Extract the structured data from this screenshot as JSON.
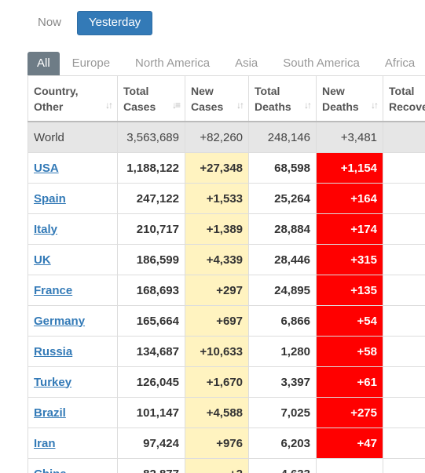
{
  "day_tabs": [
    {
      "label": "Now",
      "active": false
    },
    {
      "label": "Yesterday",
      "active": true
    }
  ],
  "region_tabs": [
    {
      "label": "All",
      "active": true
    },
    {
      "label": "Europe",
      "active": false
    },
    {
      "label": "North America",
      "active": false
    },
    {
      "label": "Asia",
      "active": false
    },
    {
      "label": "South America",
      "active": false
    },
    {
      "label": "Africa",
      "active": false
    }
  ],
  "table": {
    "headers": [
      {
        "line1": "Country,",
        "line2": "Other"
      },
      {
        "line1": "Total",
        "line2": "Cases"
      },
      {
        "line1": "New",
        "line2": "Cases"
      },
      {
        "line1": "Total",
        "line2": "Deaths"
      },
      {
        "line1": "New",
        "line2": "Deaths"
      },
      {
        "line1": "Total",
        "line2": "Recove"
      }
    ],
    "world": {
      "country": "World",
      "total_cases": "3,563,689",
      "new_cases": "+82,260",
      "total_deaths": "248,146",
      "new_deaths": "+3,481",
      "total_recovered": "1,1"
    },
    "rows": [
      {
        "country": "USA",
        "total_cases": "1,188,122",
        "new_cases": "+27,348",
        "total_deaths": "68,598",
        "new_deaths": "+1,154",
        "total_recovered": "1"
      },
      {
        "country": "Spain",
        "total_cases": "247,122",
        "new_cases": "+1,533",
        "total_deaths": "25,264",
        "new_deaths": "+164",
        "total_recovered": "1"
      },
      {
        "country": "Italy",
        "total_cases": "210,717",
        "new_cases": "+1,389",
        "total_deaths": "28,884",
        "new_deaths": "+174",
        "total_recovered": ""
      },
      {
        "country": "UK",
        "total_cases": "186,599",
        "new_cases": "+4,339",
        "total_deaths": "28,446",
        "new_deaths": "+315",
        "total_recovered": ""
      },
      {
        "country": "France",
        "total_cases": "168,693",
        "new_cases": "+297",
        "total_deaths": "24,895",
        "new_deaths": "+135",
        "total_recovered": ""
      },
      {
        "country": "Germany",
        "total_cases": "165,664",
        "new_cases": "+697",
        "total_deaths": "6,866",
        "new_deaths": "+54",
        "total_recovered": "1"
      },
      {
        "country": "Russia",
        "total_cases": "134,687",
        "new_cases": "+10,633",
        "total_deaths": "1,280",
        "new_deaths": "+58",
        "total_recovered": ""
      },
      {
        "country": "Turkey",
        "total_cases": "126,045",
        "new_cases": "+1,670",
        "total_deaths": "3,397",
        "new_deaths": "+61",
        "total_recovered": ""
      },
      {
        "country": "Brazil",
        "total_cases": "101,147",
        "new_cases": "+4,588",
        "total_deaths": "7,025",
        "new_deaths": "+275",
        "total_recovered": ""
      },
      {
        "country": "Iran",
        "total_cases": "97,424",
        "new_cases": "+976",
        "total_deaths": "6,203",
        "new_deaths": "+47",
        "total_recovered": ""
      },
      {
        "country": "China",
        "total_cases": "82,877",
        "new_cases": "+2",
        "total_deaths": "4,633",
        "new_deaths": "",
        "total_recovered": ""
      }
    ]
  },
  "colors": {
    "accent": "#337ab7",
    "new_cases_bg": "#fff3c0",
    "new_deaths_bg": "#ff0000",
    "world_row_bg": "#e6e6e6",
    "active_region_tab_bg": "#6e7c86"
  }
}
